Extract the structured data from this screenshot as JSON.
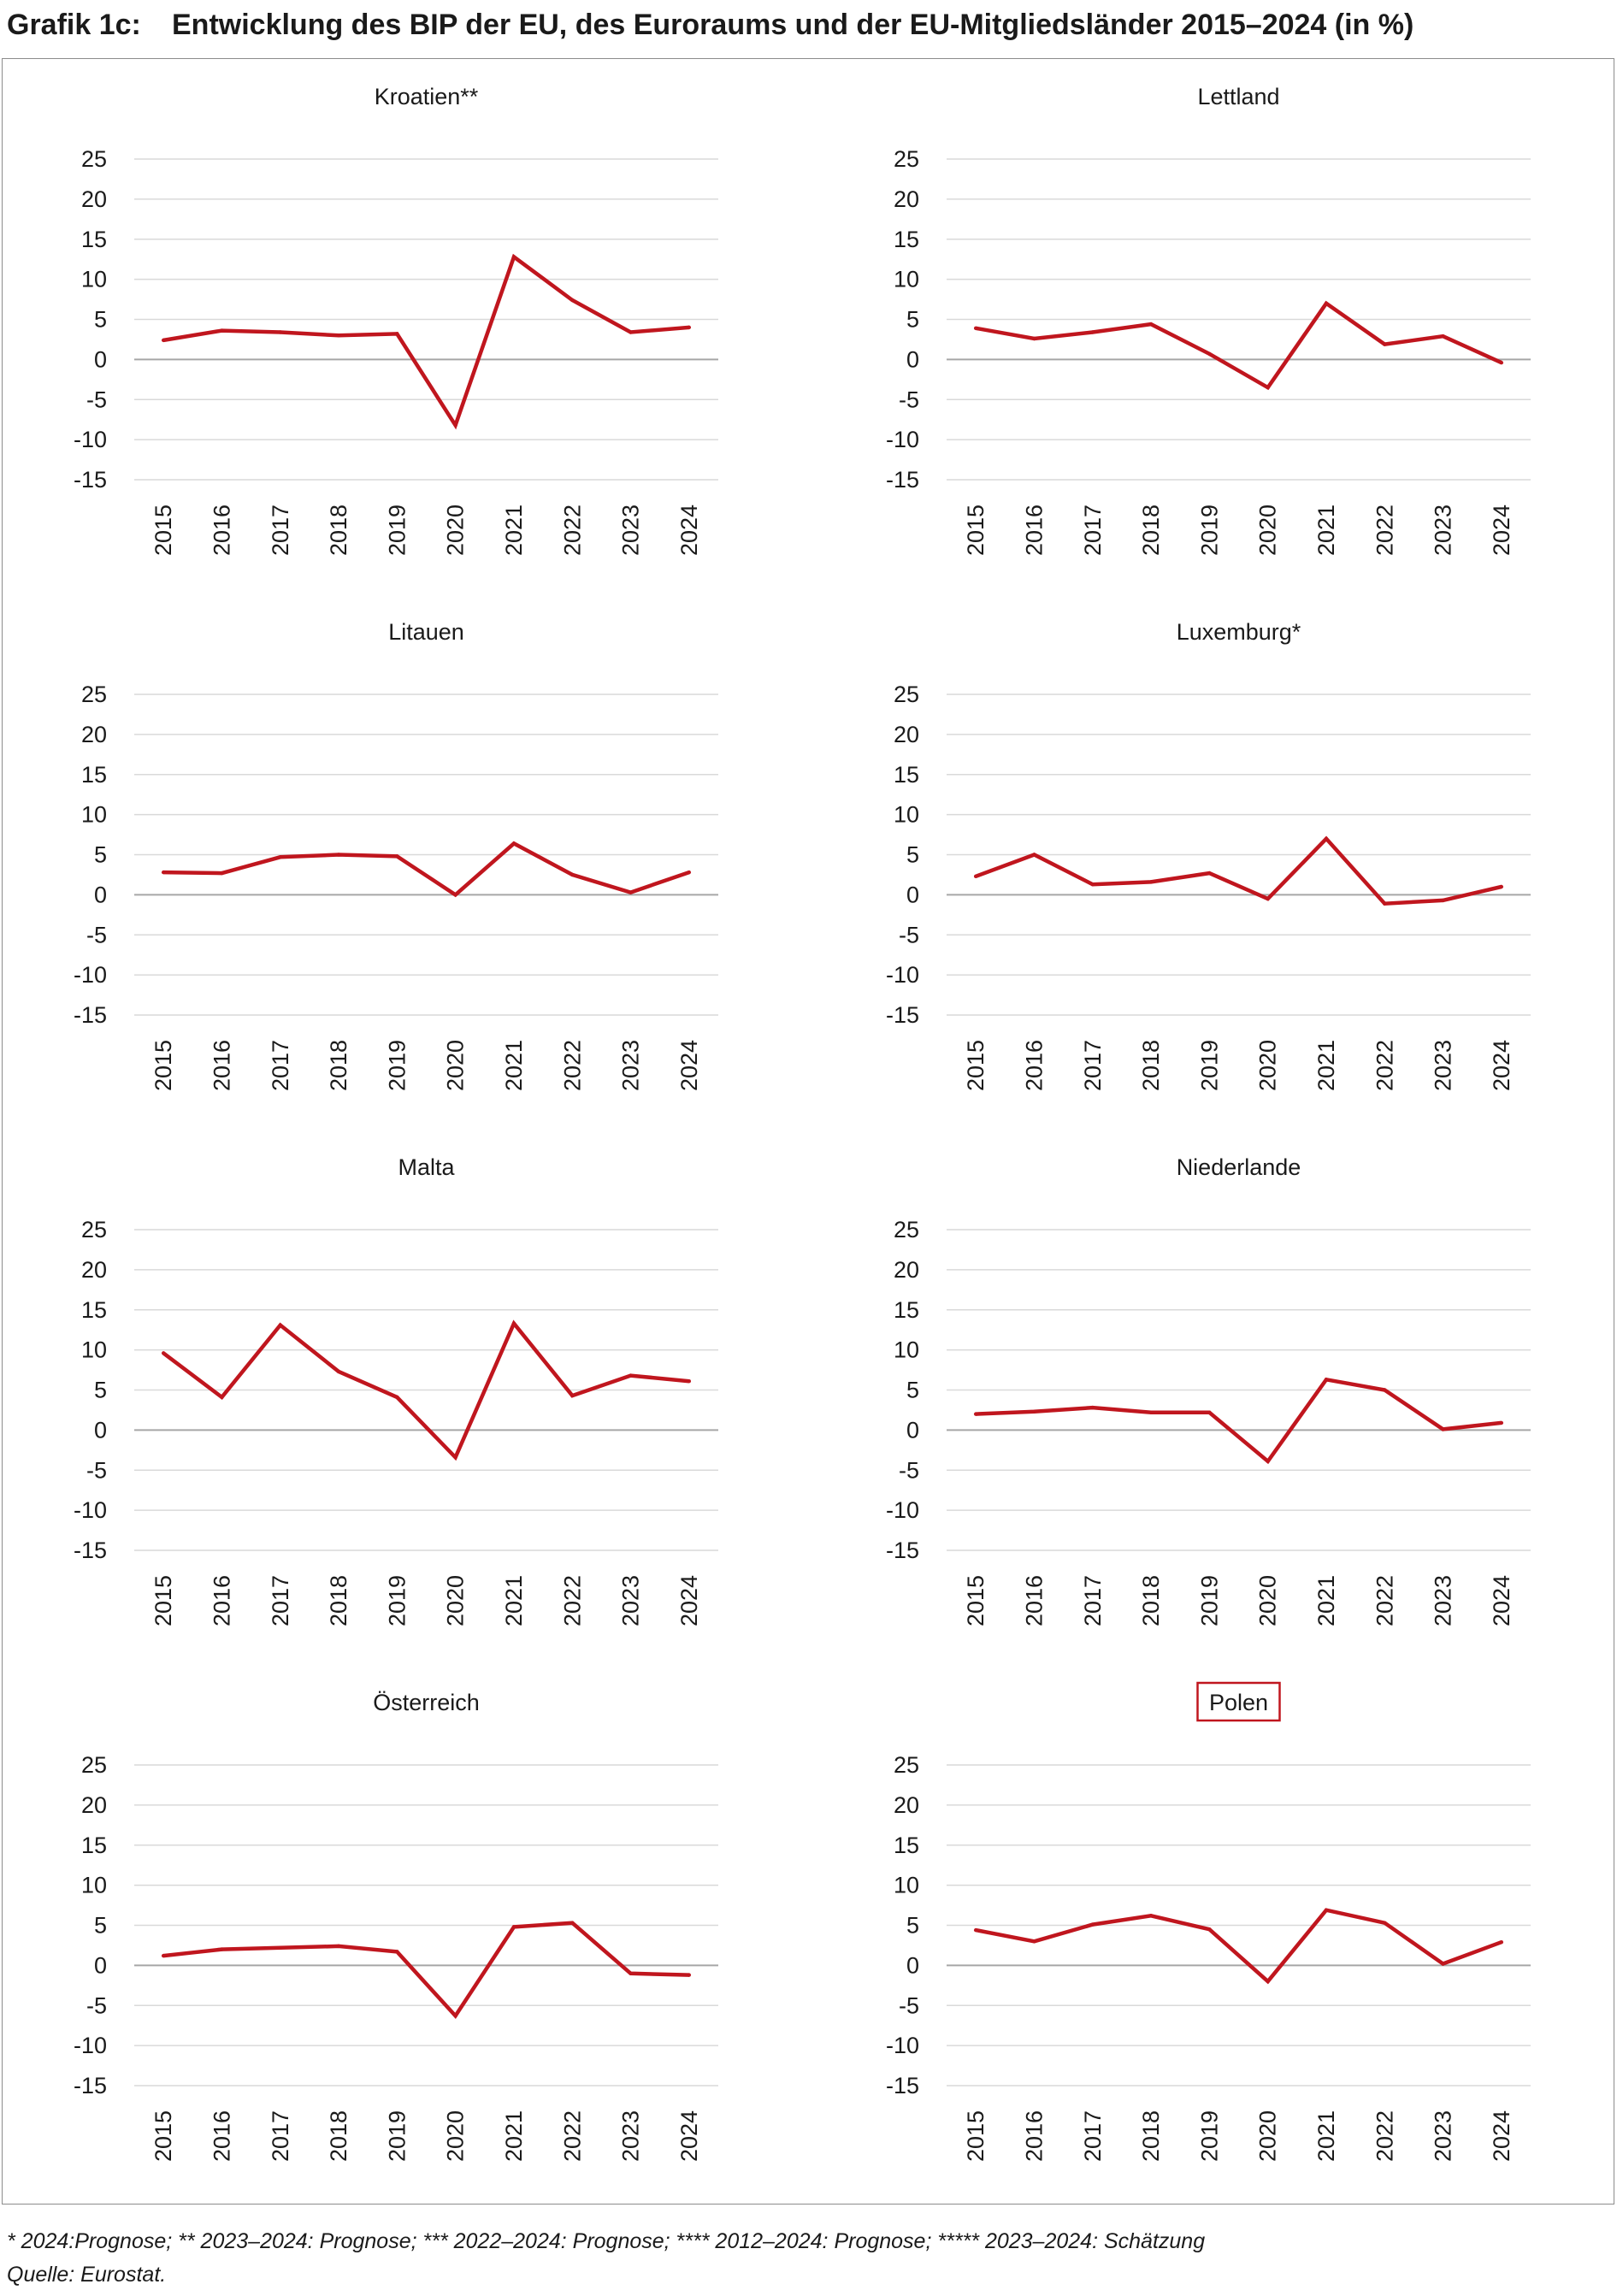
{
  "header": {
    "label": "Grafik 1c:",
    "title": "Entwicklung des BIP der EU, des Euroraums und der EU-Mitgliedsländer 2015–2024 (in %)"
  },
  "footnotes": {
    "line1": "* 2024:Prognose; ** 2023–2024: Prognose; *** 2022–2024: Prognose; **** 2012–2024: Prognose; ***** 2023–2024: Schätzung",
    "line2": "Quelle: Eurostat."
  },
  "colors": {
    "series": "#c0161e",
    "grid": "#d9d9d9",
    "zero_line": "#a6a6a6",
    "highlight_box": "#c0161e"
  },
  "chart_data": [
    {
      "type": "line",
      "title": "Kroatien**",
      "x": [
        "2015",
        "2016",
        "2017",
        "2018",
        "2019",
        "2020",
        "2021",
        "2022",
        "2023",
        "2024"
      ],
      "values": [
        2.4,
        3.6,
        3.4,
        3.0,
        3.2,
        -8.2,
        12.8,
        7.4,
        3.4,
        4.0
      ],
      "yticks": [
        25,
        20,
        15,
        10,
        5,
        0,
        -5,
        -10,
        -15
      ],
      "ylim": [
        -15,
        25
      ],
      "grid": true
    },
    {
      "type": "line",
      "title": "Lettland",
      "x": [
        "2015",
        "2016",
        "2017",
        "2018",
        "2019",
        "2020",
        "2021",
        "2022",
        "2023",
        "2024"
      ],
      "values": [
        3.9,
        2.6,
        3.4,
        4.4,
        0.7,
        -3.5,
        7.0,
        1.9,
        2.9,
        -0.4
      ],
      "yticks": [
        25,
        20,
        15,
        10,
        5,
        0,
        -5,
        -10,
        -15
      ],
      "ylim": [
        -15,
        25
      ],
      "grid": true
    },
    {
      "type": "line",
      "title": "Litauen",
      "x": [
        "2015",
        "2016",
        "2017",
        "2018",
        "2019",
        "2020",
        "2021",
        "2022",
        "2023",
        "2024"
      ],
      "values": [
        2.8,
        2.7,
        4.7,
        5.0,
        4.8,
        0.0,
        6.4,
        2.5,
        0.3,
        2.8
      ],
      "yticks": [
        25,
        20,
        15,
        10,
        5,
        0,
        -5,
        -10,
        -15
      ],
      "ylim": [
        -15,
        25
      ],
      "grid": true
    },
    {
      "type": "line",
      "title": "Luxemburg*",
      "x": [
        "2015",
        "2016",
        "2017",
        "2018",
        "2019",
        "2020",
        "2021",
        "2022",
        "2023",
        "2024"
      ],
      "values": [
        2.3,
        5.0,
        1.3,
        1.6,
        2.7,
        -0.5,
        7.0,
        -1.1,
        -0.7,
        1.0
      ],
      "yticks": [
        25,
        20,
        15,
        10,
        5,
        0,
        -5,
        -10,
        -15
      ],
      "ylim": [
        -15,
        25
      ],
      "grid": true
    },
    {
      "type": "line",
      "title": "Malta",
      "x": [
        "2015",
        "2016",
        "2017",
        "2018",
        "2019",
        "2020",
        "2021",
        "2022",
        "2023",
        "2024"
      ],
      "values": [
        9.6,
        4.1,
        13.1,
        7.3,
        4.1,
        -3.4,
        13.3,
        4.3,
        6.8,
        6.1
      ],
      "yticks": [
        25,
        20,
        15,
        10,
        5,
        0,
        -5,
        -10,
        -15
      ],
      "ylim": [
        -15,
        25
      ],
      "grid": true
    },
    {
      "type": "line",
      "title": "Niederlande",
      "x": [
        "2015",
        "2016",
        "2017",
        "2018",
        "2019",
        "2020",
        "2021",
        "2022",
        "2023",
        "2024"
      ],
      "values": [
        2.0,
        2.3,
        2.8,
        2.2,
        2.2,
        -3.9,
        6.3,
        5.0,
        0.1,
        0.9
      ],
      "yticks": [
        25,
        20,
        15,
        10,
        5,
        0,
        -5,
        -10,
        -15
      ],
      "ylim": [
        -15,
        25
      ],
      "grid": true
    },
    {
      "type": "line",
      "title": "Österreich",
      "x": [
        "2015",
        "2016",
        "2017",
        "2018",
        "2019",
        "2020",
        "2021",
        "2022",
        "2023",
        "2024"
      ],
      "values": [
        1.2,
        2.0,
        2.2,
        2.4,
        1.7,
        -6.3,
        4.8,
        5.3,
        -1.0,
        -1.2
      ],
      "yticks": [
        25,
        20,
        15,
        10,
        5,
        0,
        -5,
        -10,
        -15
      ],
      "ylim": [
        -15,
        25
      ],
      "grid": true
    },
    {
      "type": "line",
      "title": "Polen",
      "highlighted": true,
      "x": [
        "2015",
        "2016",
        "2017",
        "2018",
        "2019",
        "2020",
        "2021",
        "2022",
        "2023",
        "2024"
      ],
      "values": [
        4.4,
        3.0,
        5.1,
        6.2,
        4.5,
        -2.0,
        6.9,
        5.3,
        0.2,
        2.9
      ],
      "yticks": [
        25,
        20,
        15,
        10,
        5,
        0,
        -5,
        -10,
        -15
      ],
      "ylim": [
        -15,
        25
      ],
      "grid": true
    }
  ]
}
